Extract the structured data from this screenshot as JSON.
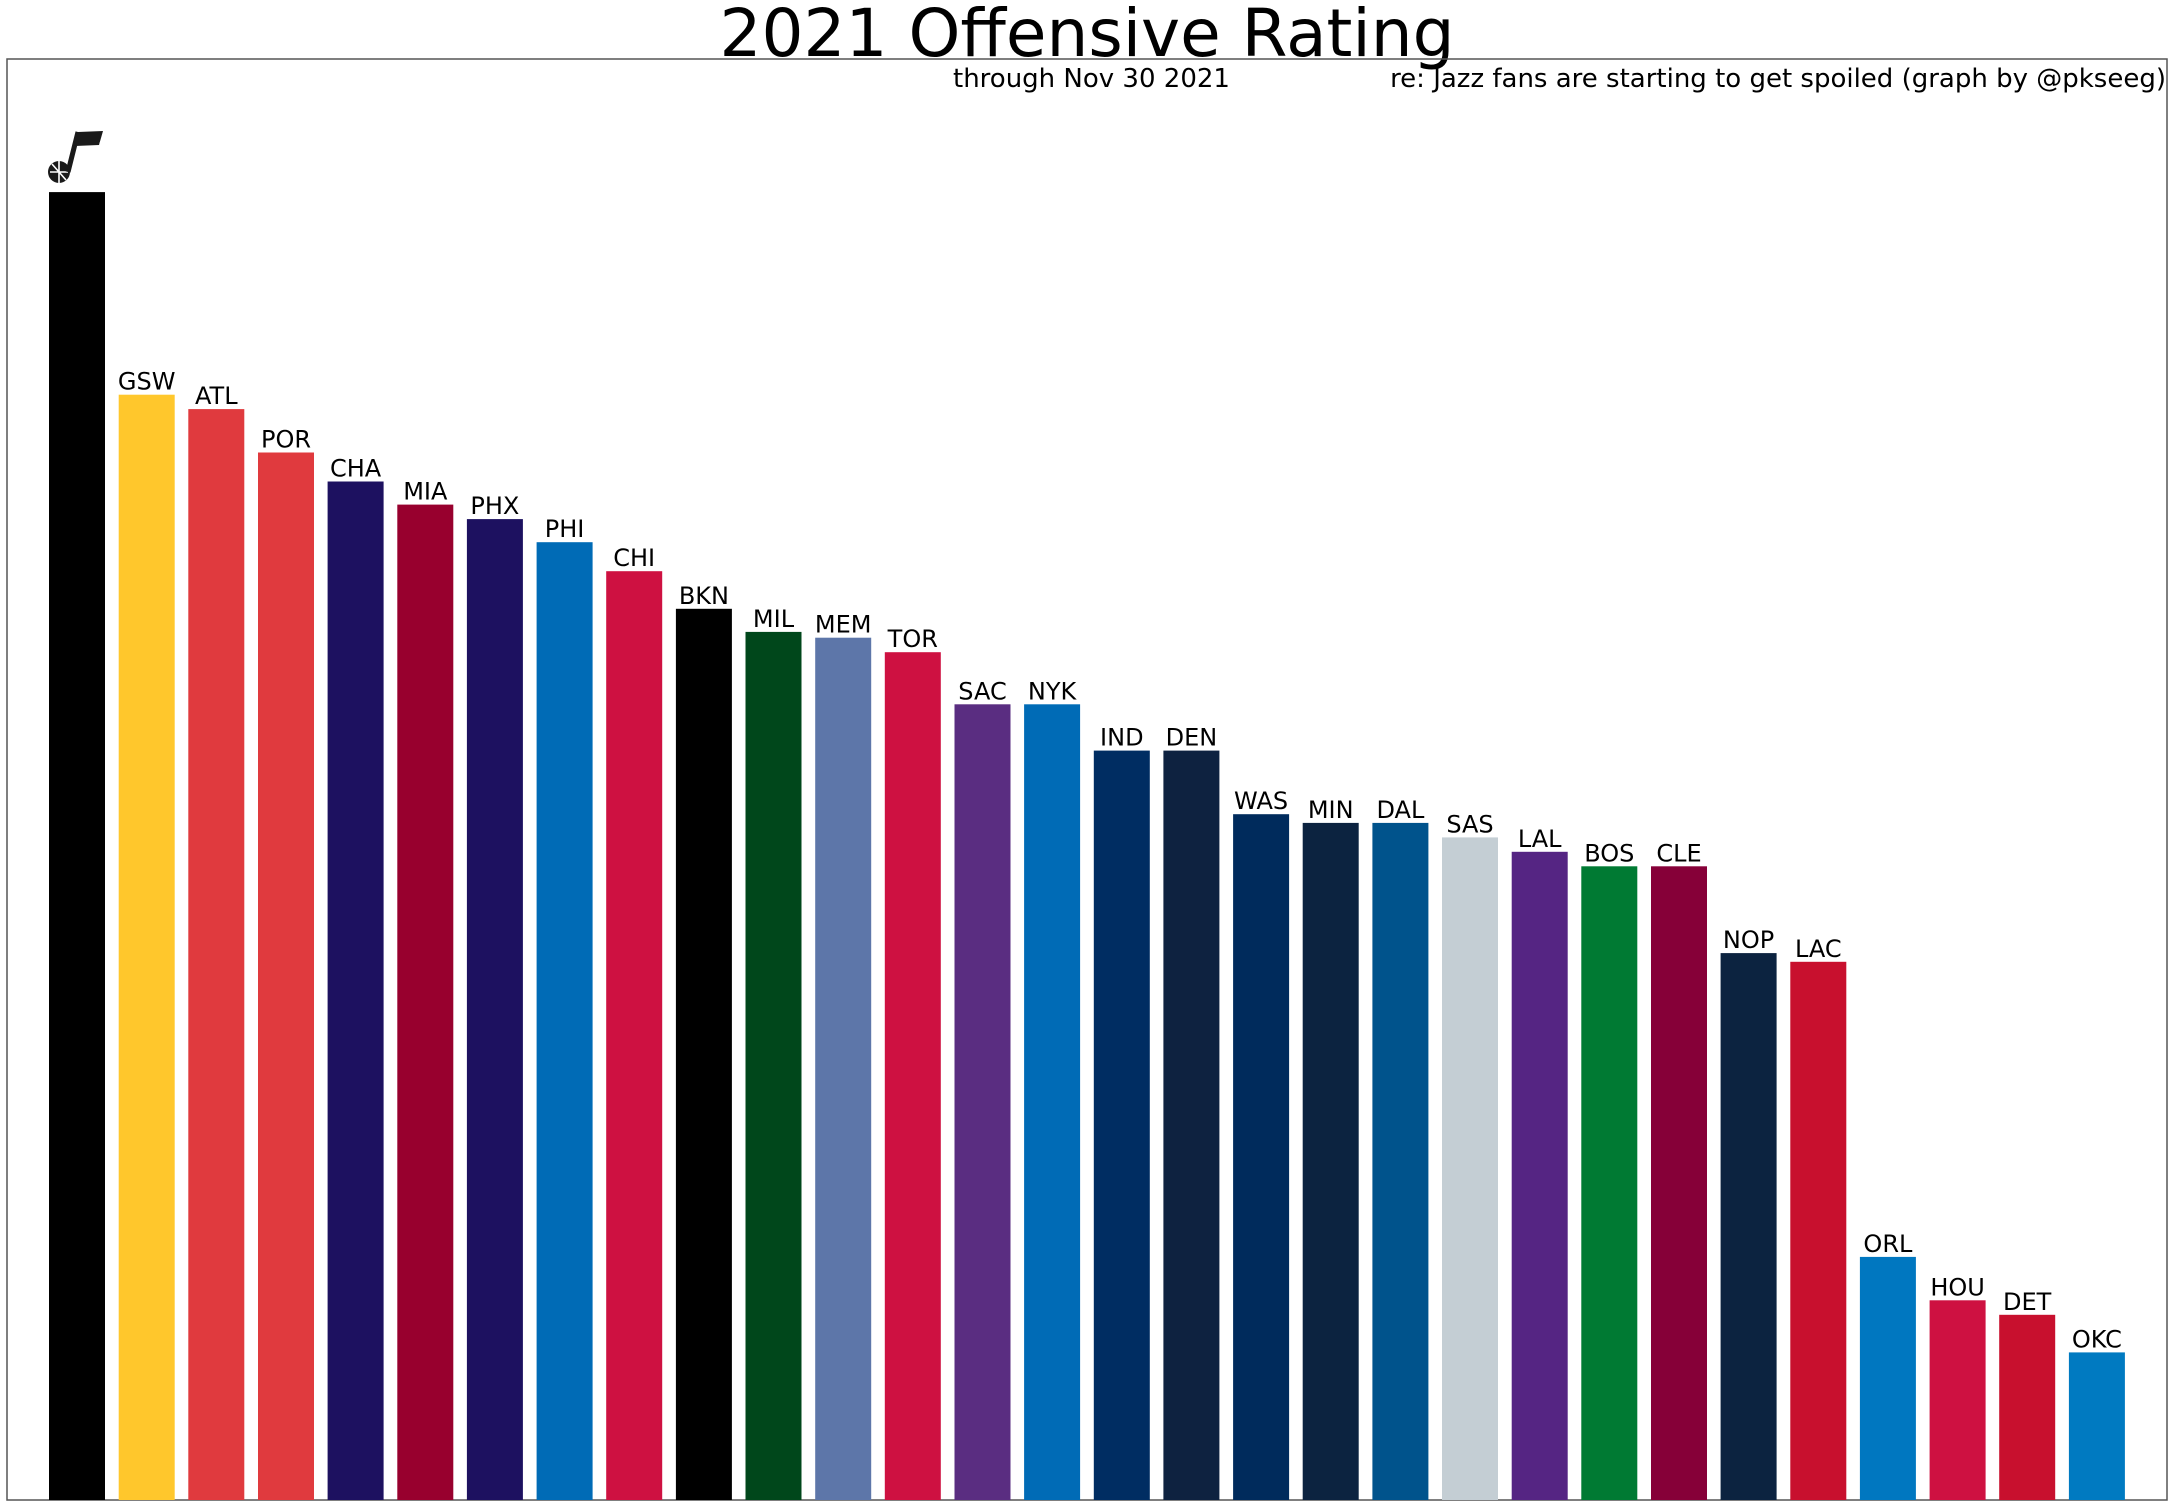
{
  "chart_data": {
    "type": "bar",
    "title": "2021 Offensive Rating",
    "subtitle_left": "through Nov 30 2021",
    "subtitle_right": "re: Jazz fans are starting to get spoiled (graph by @pkseeg)",
    "xlabel": "",
    "ylabel": "",
    "grid": false,
    "legend": "none",
    "categories": [
      "UTA",
      "GSW",
      "ATL",
      "POR",
      "CHA",
      "MIA",
      "PHX",
      "PHI",
      "CHI",
      "BKN",
      "MIL",
      "MEM",
      "TOR",
      "SAC",
      "NYK",
      "IND",
      "DEN",
      "WAS",
      "MIN",
      "DAL",
      "SAS",
      "LAL",
      "BOS",
      "CLE",
      "NOP",
      "LAC",
      "ORL",
      "HOU",
      "DET",
      "OKC"
    ],
    "labels": [
      "",
      "GSW",
      "ATL",
      "POR",
      "CHA",
      "MIA",
      "PHX",
      "PHI",
      "CHI",
      "BKN",
      "MIL",
      "MEM",
      "TOR",
      "SAC",
      "NYK",
      "IND",
      "DEN",
      "WAS",
      "MIN",
      "DAL",
      "SAS",
      "LAL",
      "BOS",
      "CLE",
      "NOP",
      "LAC",
      "ORL",
      "HOU",
      "DET",
      "OKC"
    ],
    "values": [
      114.9,
      111.4,
      111.15,
      110.4,
      109.9,
      109.5,
      109.25,
      108.85,
      108.35,
      107.7,
      107.3,
      107.2,
      106.95,
      106.05,
      106.05,
      105.25,
      105.25,
      104.15,
      104.0,
      104.0,
      103.75,
      103.5,
      103.25,
      103.25,
      101.75,
      101.6,
      96.5,
      95.75,
      95.5,
      94.85
    ],
    "colors": [
      "#000000",
      "#FFC72C",
      "#E03A3E",
      "#E03A3E",
      "#1D1160",
      "#98002E",
      "#1D1160",
      "#006BB6",
      "#CE1141",
      "#000000",
      "#00471B",
      "#5D76A9",
      "#CE1141",
      "#5A2D81",
      "#006BB6",
      "#002D62",
      "#0E2240",
      "#002B5C",
      "#0C2340",
      "#00538C",
      "#C4CED4",
      "#552583",
      "#007A33",
      "#860038",
      "#0C2340",
      "#C8102E",
      "#0077C0",
      "#CE1141",
      "#C8102E",
      "#007AC1"
    ],
    "ylim": [
      92.3,
      117.2
    ],
    "logo_icon": "jazz-note-icon"
  }
}
